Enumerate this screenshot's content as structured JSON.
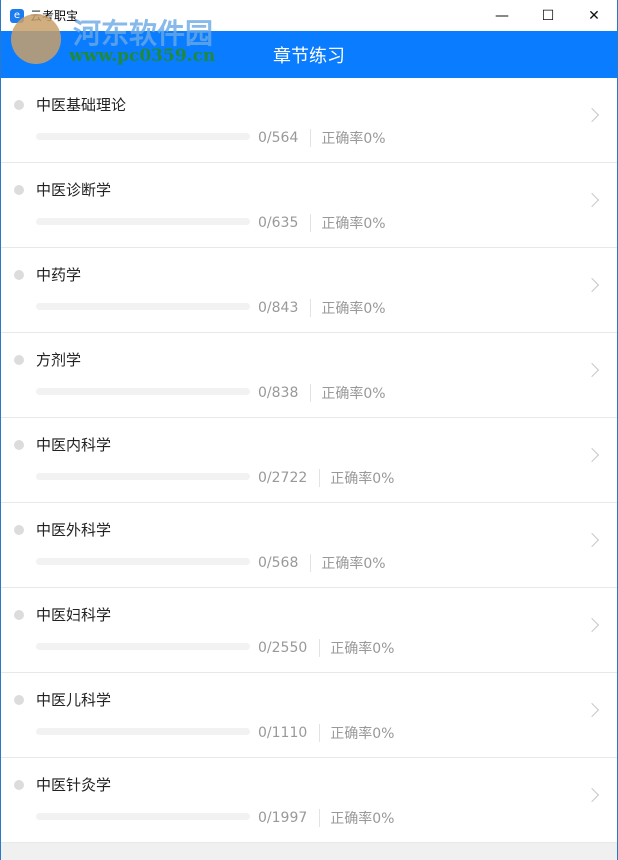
{
  "window": {
    "title": "云考职宝",
    "minimize": "—",
    "maximize": "☐",
    "close": "✕"
  },
  "header": {
    "title": "章节练习"
  },
  "watermark": {
    "name": "河东软件园",
    "url": "www.pc0359.cn"
  },
  "items": [
    {
      "name": "中医基础理论",
      "progress": "0/564",
      "accuracy": "正确率0%",
      "fraction": 0
    },
    {
      "name": "中医诊断学",
      "progress": "0/635",
      "accuracy": "正确率0%",
      "fraction": 0
    },
    {
      "name": "中药学",
      "progress": "0/843",
      "accuracy": "正确率0%",
      "fraction": 0
    },
    {
      "name": "方剂学",
      "progress": "0/838",
      "accuracy": "正确率0%",
      "fraction": 0
    },
    {
      "name": "中医内科学",
      "progress": "0/2722",
      "accuracy": "正确率0%",
      "fraction": 0
    },
    {
      "name": "中医外科学",
      "progress": "0/568",
      "accuracy": "正确率0%",
      "fraction": 0
    },
    {
      "name": "中医妇科学",
      "progress": "0/2550",
      "accuracy": "正确率0%",
      "fraction": 0
    },
    {
      "name": "中医儿科学",
      "progress": "0/1110",
      "accuracy": "正确率0%",
      "fraction": 0
    },
    {
      "name": "中医针灸学",
      "progress": "0/1997",
      "accuracy": "正确率0%",
      "fraction": 0
    }
  ]
}
